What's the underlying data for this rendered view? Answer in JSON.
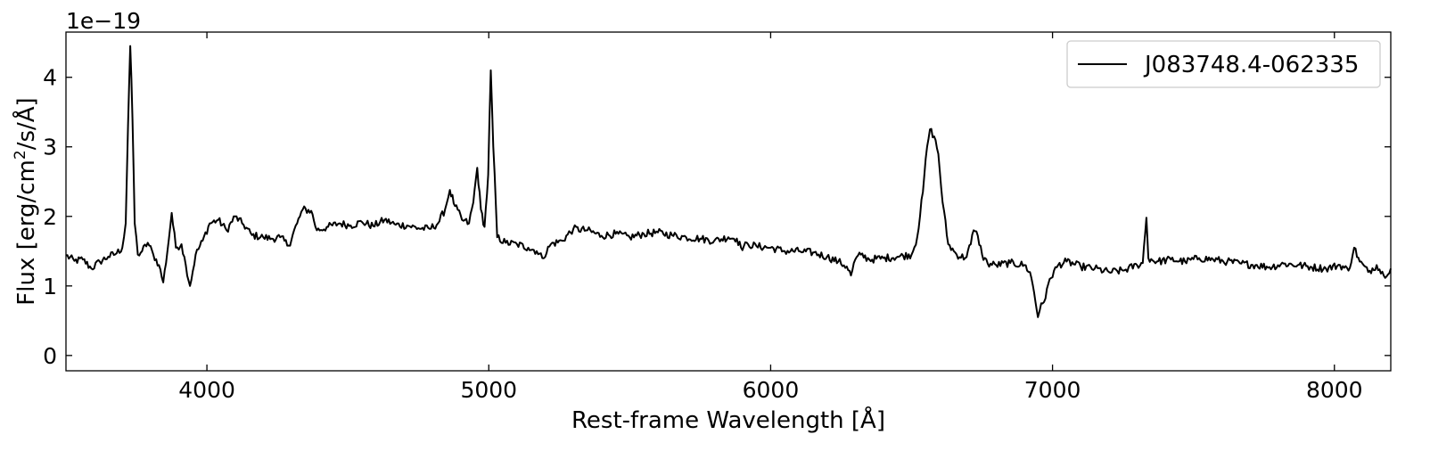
{
  "chart_data": {
    "type": "line",
    "title": "",
    "xlabel": "Rest-frame Wavelength [Å]",
    "ylabel": "Flux [erg/cm²/s/Å]",
    "ylabel_parts": {
      "pre": "Flux [erg/cm",
      "sup": "2",
      "post": "/s/Å]"
    },
    "y_offset_text": "1e−19",
    "xlim": [
      3500,
      8200
    ],
    "ylim": [
      -0.22,
      4.65
    ],
    "x_ticks": [
      4000,
      5000,
      6000,
      7000,
      8000
    ],
    "y_ticks": [
      0,
      1,
      2,
      3,
      4
    ],
    "grid": false,
    "legend_position": "top-right",
    "line_color": "#000000",
    "series": [
      {
        "name": "J083748.4-062335",
        "points": [
          [
            3500,
            1.44
          ],
          [
            3530,
            1.36
          ],
          [
            3560,
            1.38
          ],
          [
            3590,
            1.25
          ],
          [
            3620,
            1.35
          ],
          [
            3650,
            1.42
          ],
          [
            3680,
            1.47
          ],
          [
            3700,
            1.55
          ],
          [
            3712,
            1.9
          ],
          [
            3720,
            3.3
          ],
          [
            3728,
            4.45
          ],
          [
            3736,
            3.4
          ],
          [
            3744,
            1.9
          ],
          [
            3755,
            1.45
          ],
          [
            3770,
            1.5
          ],
          [
            3790,
            1.62
          ],
          [
            3810,
            1.45
          ],
          [
            3830,
            1.3
          ],
          [
            3845,
            1.05
          ],
          [
            3860,
            1.5
          ],
          [
            3875,
            2.05
          ],
          [
            3890,
            1.55
          ],
          [
            3910,
            1.6
          ],
          [
            3925,
            1.3
          ],
          [
            3940,
            1.0
          ],
          [
            3960,
            1.45
          ],
          [
            3985,
            1.65
          ],
          [
            4010,
            1.9
          ],
          [
            4040,
            1.95
          ],
          [
            4070,
            1.8
          ],
          [
            4100,
            2.0
          ],
          [
            4130,
            1.88
          ],
          [
            4160,
            1.73
          ],
          [
            4200,
            1.7
          ],
          [
            4230,
            1.68
          ],
          [
            4260,
            1.7
          ],
          [
            4290,
            1.58
          ],
          [
            4320,
            1.9
          ],
          [
            4340,
            2.1
          ],
          [
            4370,
            2.08
          ],
          [
            4390,
            1.8
          ],
          [
            4430,
            1.85
          ],
          [
            4470,
            1.9
          ],
          [
            4510,
            1.87
          ],
          [
            4550,
            1.92
          ],
          [
            4590,
            1.86
          ],
          [
            4630,
            1.95
          ],
          [
            4670,
            1.88
          ],
          [
            4710,
            1.87
          ],
          [
            4750,
            1.83
          ],
          [
            4790,
            1.82
          ],
          [
            4820,
            1.9
          ],
          [
            4845,
            2.1
          ],
          [
            4862,
            2.38
          ],
          [
            4880,
            2.15
          ],
          [
            4905,
            1.95
          ],
          [
            4930,
            1.9
          ],
          [
            4945,
            2.2
          ],
          [
            4959,
            2.7
          ],
          [
            4972,
            2.1
          ],
          [
            4985,
            1.85
          ],
          [
            4998,
            2.6
          ],
          [
            5007,
            4.1
          ],
          [
            5016,
            3.0
          ],
          [
            5030,
            1.7
          ],
          [
            5060,
            1.62
          ],
          [
            5100,
            1.6
          ],
          [
            5140,
            1.55
          ],
          [
            5170,
            1.5
          ],
          [
            5190,
            1.4
          ],
          [
            5220,
            1.6
          ],
          [
            5260,
            1.65
          ],
          [
            5300,
            1.82
          ],
          [
            5350,
            1.8
          ],
          [
            5400,
            1.72
          ],
          [
            5450,
            1.75
          ],
          [
            5500,
            1.7
          ],
          [
            5550,
            1.75
          ],
          [
            5600,
            1.77
          ],
          [
            5650,
            1.73
          ],
          [
            5700,
            1.7
          ],
          [
            5750,
            1.68
          ],
          [
            5800,
            1.65
          ],
          [
            5850,
            1.7
          ],
          [
            5880,
            1.68
          ],
          [
            5895,
            1.55
          ],
          [
            5920,
            1.6
          ],
          [
            5950,
            1.57
          ],
          [
            6000,
            1.55
          ],
          [
            6050,
            1.5
          ],
          [
            6100,
            1.5
          ],
          [
            6150,
            1.48
          ],
          [
            6200,
            1.42
          ],
          [
            6240,
            1.35
          ],
          [
            6270,
            1.28
          ],
          [
            6285,
            1.15
          ],
          [
            6300,
            1.38
          ],
          [
            6320,
            1.45
          ],
          [
            6350,
            1.38
          ],
          [
            6400,
            1.4
          ],
          [
            6450,
            1.42
          ],
          [
            6500,
            1.45
          ],
          [
            6520,
            1.7
          ],
          [
            6540,
            2.35
          ],
          [
            6555,
            3.0
          ],
          [
            6565,
            3.25
          ],
          [
            6580,
            3.15
          ],
          [
            6595,
            2.9
          ],
          [
            6610,
            2.2
          ],
          [
            6630,
            1.6
          ],
          [
            6660,
            1.45
          ],
          [
            6690,
            1.4
          ],
          [
            6710,
            1.6
          ],
          [
            6720,
            1.8
          ],
          [
            6735,
            1.72
          ],
          [
            6750,
            1.45
          ],
          [
            6770,
            1.32
          ],
          [
            6800,
            1.3
          ],
          [
            6850,
            1.33
          ],
          [
            6900,
            1.3
          ],
          [
            6920,
            1.2
          ],
          [
            6935,
            0.9
          ],
          [
            6948,
            0.55
          ],
          [
            6960,
            0.75
          ],
          [
            6975,
            0.82
          ],
          [
            6990,
            1.1
          ],
          [
            7020,
            1.3
          ],
          [
            7050,
            1.35
          ],
          [
            7100,
            1.28
          ],
          [
            7150,
            1.25
          ],
          [
            7200,
            1.2
          ],
          [
            7250,
            1.22
          ],
          [
            7300,
            1.3
          ],
          [
            7320,
            1.33
          ],
          [
            7333,
            1.98
          ],
          [
            7340,
            1.4
          ],
          [
            7370,
            1.35
          ],
          [
            7420,
            1.38
          ],
          [
            7470,
            1.35
          ],
          [
            7520,
            1.4
          ],
          [
            7570,
            1.38
          ],
          [
            7620,
            1.35
          ],
          [
            7670,
            1.32
          ],
          [
            7720,
            1.3
          ],
          [
            7770,
            1.27
          ],
          [
            7820,
            1.32
          ],
          [
            7870,
            1.3
          ],
          [
            7920,
            1.27
          ],
          [
            7970,
            1.25
          ],
          [
            8020,
            1.3
          ],
          [
            8050,
            1.22
          ],
          [
            8070,
            1.55
          ],
          [
            8090,
            1.35
          ],
          [
            8120,
            1.2
          ],
          [
            8150,
            1.3
          ],
          [
            8175,
            1.15
          ],
          [
            8200,
            1.25
          ]
        ]
      }
    ]
  }
}
